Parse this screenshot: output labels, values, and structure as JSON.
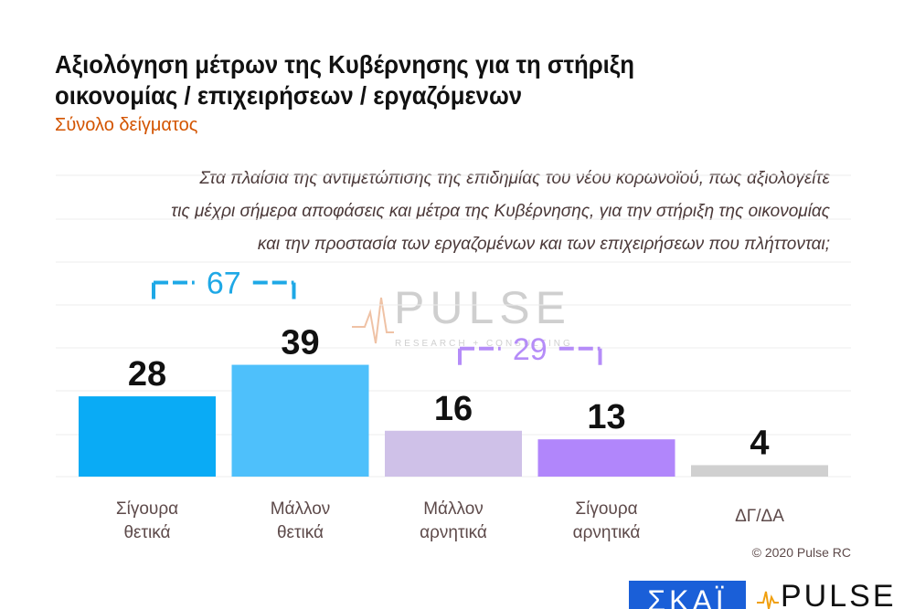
{
  "header": {
    "title_line1": "Αξιολόγηση μέτρων της Κυβέρνησης για τη στήριξη",
    "title_line2": "οικονομίας / επιχειρήσεων / εργαζόμενων",
    "subtitle": "Σύνολο δείγματος"
  },
  "question": {
    "line1": "Στα πλαίσια της αντιμετώπισης της επιδημίας του νέου κορωνοϊού, πως αξιολογείτε",
    "line2": "τις μέχρι σήμερα αποφάσεις και μέτρα της Κυβέρνησης, για την στήριξη της οικονομίας",
    "line3": "και την προστασία των εργαζομένων και των επιχειρήσεων που πλήττονται;"
  },
  "chart_data": {
    "type": "bar",
    "categories": [
      [
        "Σίγουρα",
        "θετικά"
      ],
      [
        "Μάλλον",
        "θετικά"
      ],
      [
        "Μάλλον",
        "αρνητικά"
      ],
      [
        "Σίγουρα",
        "αρνητικά"
      ],
      [
        "ΔΓ/ΔΑ"
      ]
    ],
    "values": [
      28,
      39,
      16,
      13,
      4
    ],
    "colors": [
      "#0aabf5",
      "#4ec0fb",
      "#cfc1e8",
      "#b186fb",
      "#d0d0d0"
    ],
    "groups": [
      {
        "label": "67",
        "from": 0,
        "to": 1,
        "color": "#1ea8e6"
      },
      {
        "label": "29",
        "from": 2,
        "to": 3,
        "color": "#b58cf8"
      }
    ],
    "ylim": [
      0,
      50
    ],
    "grid": true
  },
  "footer": {
    "copyright": "© 2020 Pulse RC"
  },
  "logos": {
    "skai": "ΣΚΑΪ",
    "pulse": "PULSE",
    "watermark_word": "PULSE",
    "watermark_sub": "RESEARCH + CONSULTING"
  }
}
